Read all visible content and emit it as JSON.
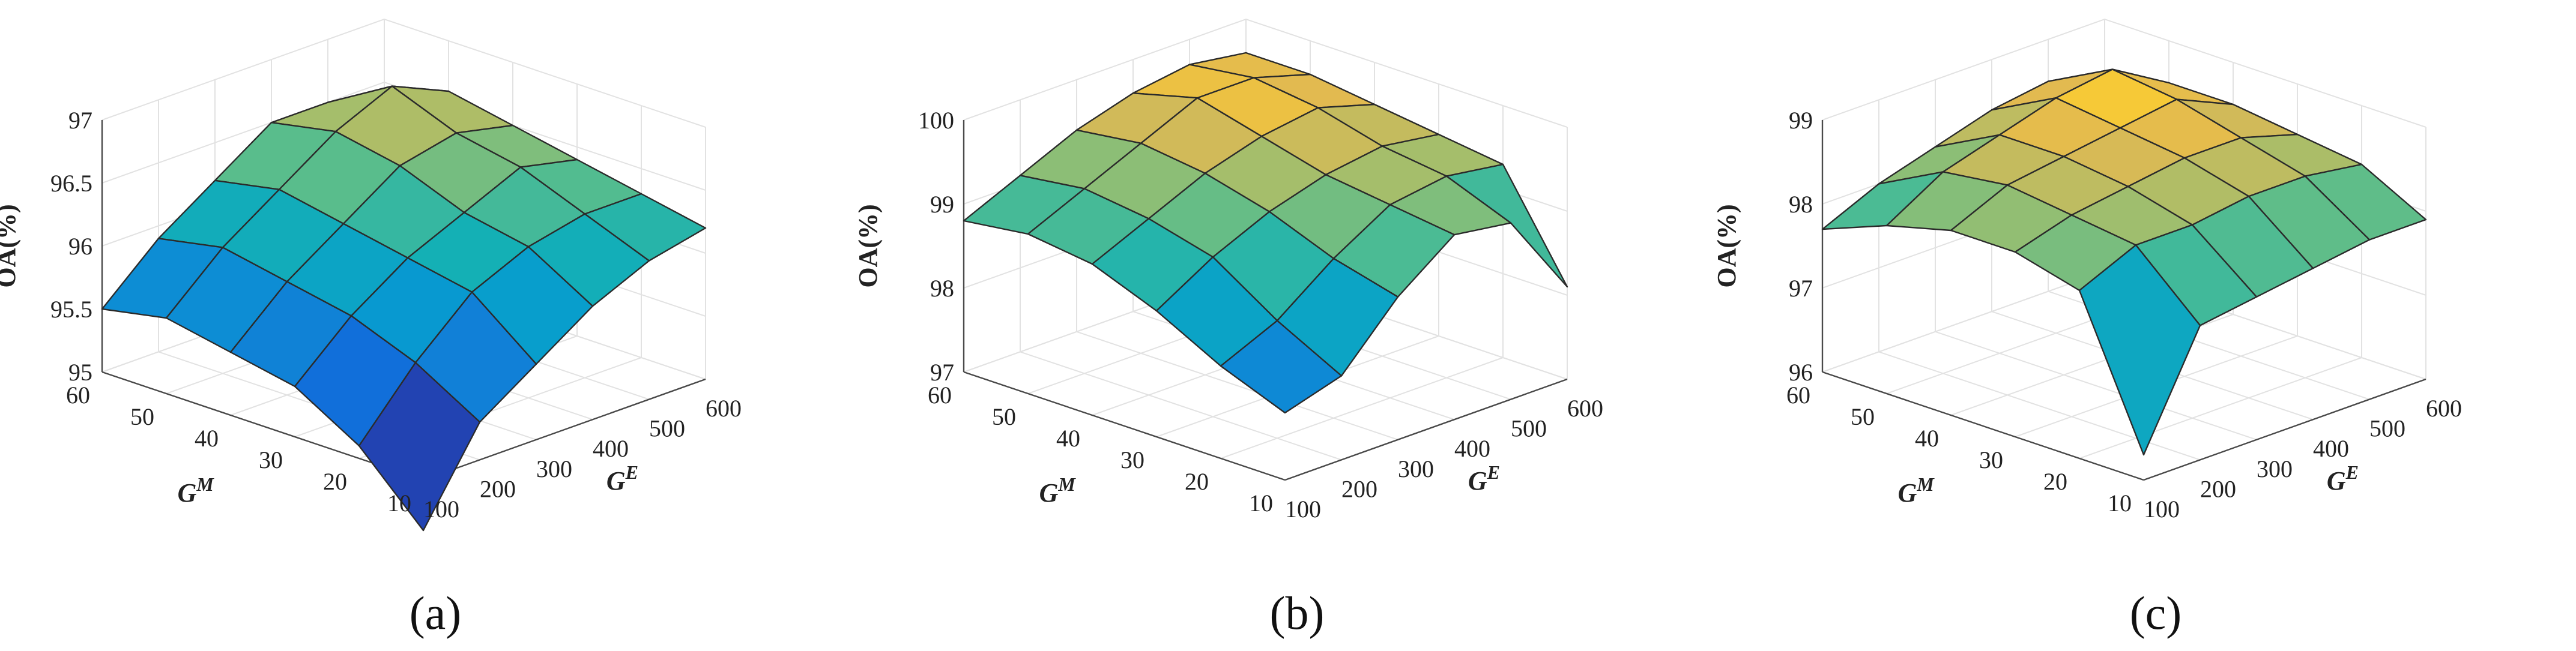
{
  "figure": {
    "panel_labels": [
      "(a)",
      "(b)",
      "(c)"
    ]
  },
  "chart_data": [
    {
      "type": "surface",
      "panel": "(a)",
      "xlabel_base": "G",
      "xlabel_sup": "E",
      "ylabel_base": "G",
      "ylabel_sup": "M",
      "zlabel": "OA(%)",
      "x_ticks": [
        100,
        200,
        300,
        400,
        500,
        600
      ],
      "y_ticks": [
        10,
        20,
        30,
        40,
        50,
        60
      ],
      "z_ticks": [
        "95",
        "95.5",
        "96",
        "96.5",
        "97"
      ],
      "zlim": [
        95,
        97
      ],
      "grid": true,
      "rows_GM": [
        10,
        20,
        30,
        40,
        50,
        60
      ],
      "cols_GE": [
        100,
        200,
        300,
        400,
        500,
        600
      ],
      "values": [
        [
          94.6,
          95.3,
          95.6,
          95.9,
          96.1,
          96.2
        ],
        [
          95.1,
          95.6,
          96.0,
          96.2,
          96.3,
          96.3
        ],
        [
          95.4,
          95.8,
          96.1,
          96.3,
          96.5,
          96.4
        ],
        [
          95.5,
          95.9,
          96.2,
          96.5,
          96.6,
          96.5
        ],
        [
          95.6,
          96.0,
          96.3,
          96.6,
          96.8,
          96.6
        ],
        [
          95.5,
          95.9,
          96.2,
          96.5,
          96.5,
          96.3
        ]
      ]
    },
    {
      "type": "surface",
      "panel": "(b)",
      "xlabel_base": "G",
      "xlabel_sup": "E",
      "ylabel_base": "G",
      "ylabel_sup": "M",
      "zlabel": "OA(%)",
      "x_ticks": [
        100,
        200,
        300,
        400,
        500,
        600
      ],
      "y_ticks": [
        10,
        20,
        30,
        40,
        50,
        60
      ],
      "z_ticks": [
        "97",
        "98",
        "99",
        "100"
      ],
      "zlim": [
        97,
        100
      ],
      "grid": true,
      "rows_GM": [
        10,
        20,
        30,
        40,
        50,
        60
      ],
      "cols_GE": [
        100,
        200,
        300,
        400,
        500,
        600
      ],
      "values": [
        [
          97.8,
          98.0,
          98.7,
          99.2,
          99.1,
          98.1
        ],
        [
          98.1,
          98.4,
          98.9,
          99.3,
          99.4,
          99.3
        ],
        [
          98.5,
          98.9,
          99.2,
          99.4,
          99.5,
          99.4
        ],
        [
          98.8,
          99.1,
          99.4,
          99.6,
          99.7,
          99.5
        ],
        [
          98.9,
          99.2,
          99.5,
          99.8,
          99.8,
          99.6
        ],
        [
          98.8,
          99.1,
          99.4,
          99.6,
          99.7,
          99.6
        ]
      ]
    },
    {
      "type": "surface",
      "panel": "(c)",
      "xlabel_base": "G",
      "xlabel_sup": "E",
      "ylabel_base": "G",
      "ylabel_sup": "M",
      "zlabel": "OA(%)",
      "x_ticks": [
        100,
        200,
        300,
        400,
        500,
        600
      ],
      "y_ticks": [
        10,
        20,
        30,
        40,
        50,
        60
      ],
      "z_ticks": [
        "96",
        "97",
        "98",
        "99"
      ],
      "zlim": [
        96,
        99
      ],
      "grid": true,
      "rows_GM": [
        10,
        20,
        30,
        40,
        50,
        60
      ],
      "cols_GE": [
        100,
        200,
        300,
        400,
        500,
        600
      ],
      "values": [
        [
          96.3,
          97.6,
          97.7,
          97.8,
          97.9,
          97.9
        ],
        [
          98.0,
          98.3,
          98.3,
          98.4,
          98.4,
          98.3
        ],
        [
          98.2,
          98.4,
          98.5,
          98.6,
          98.6,
          98.4
        ],
        [
          98.2,
          98.5,
          98.6,
          98.7,
          98.8,
          98.5
        ],
        [
          98.0,
          98.4,
          98.6,
          98.8,
          98.9,
          98.5
        ],
        [
          97.7,
          98.0,
          98.2,
          98.4,
          98.5,
          98.3
        ]
      ]
    }
  ]
}
